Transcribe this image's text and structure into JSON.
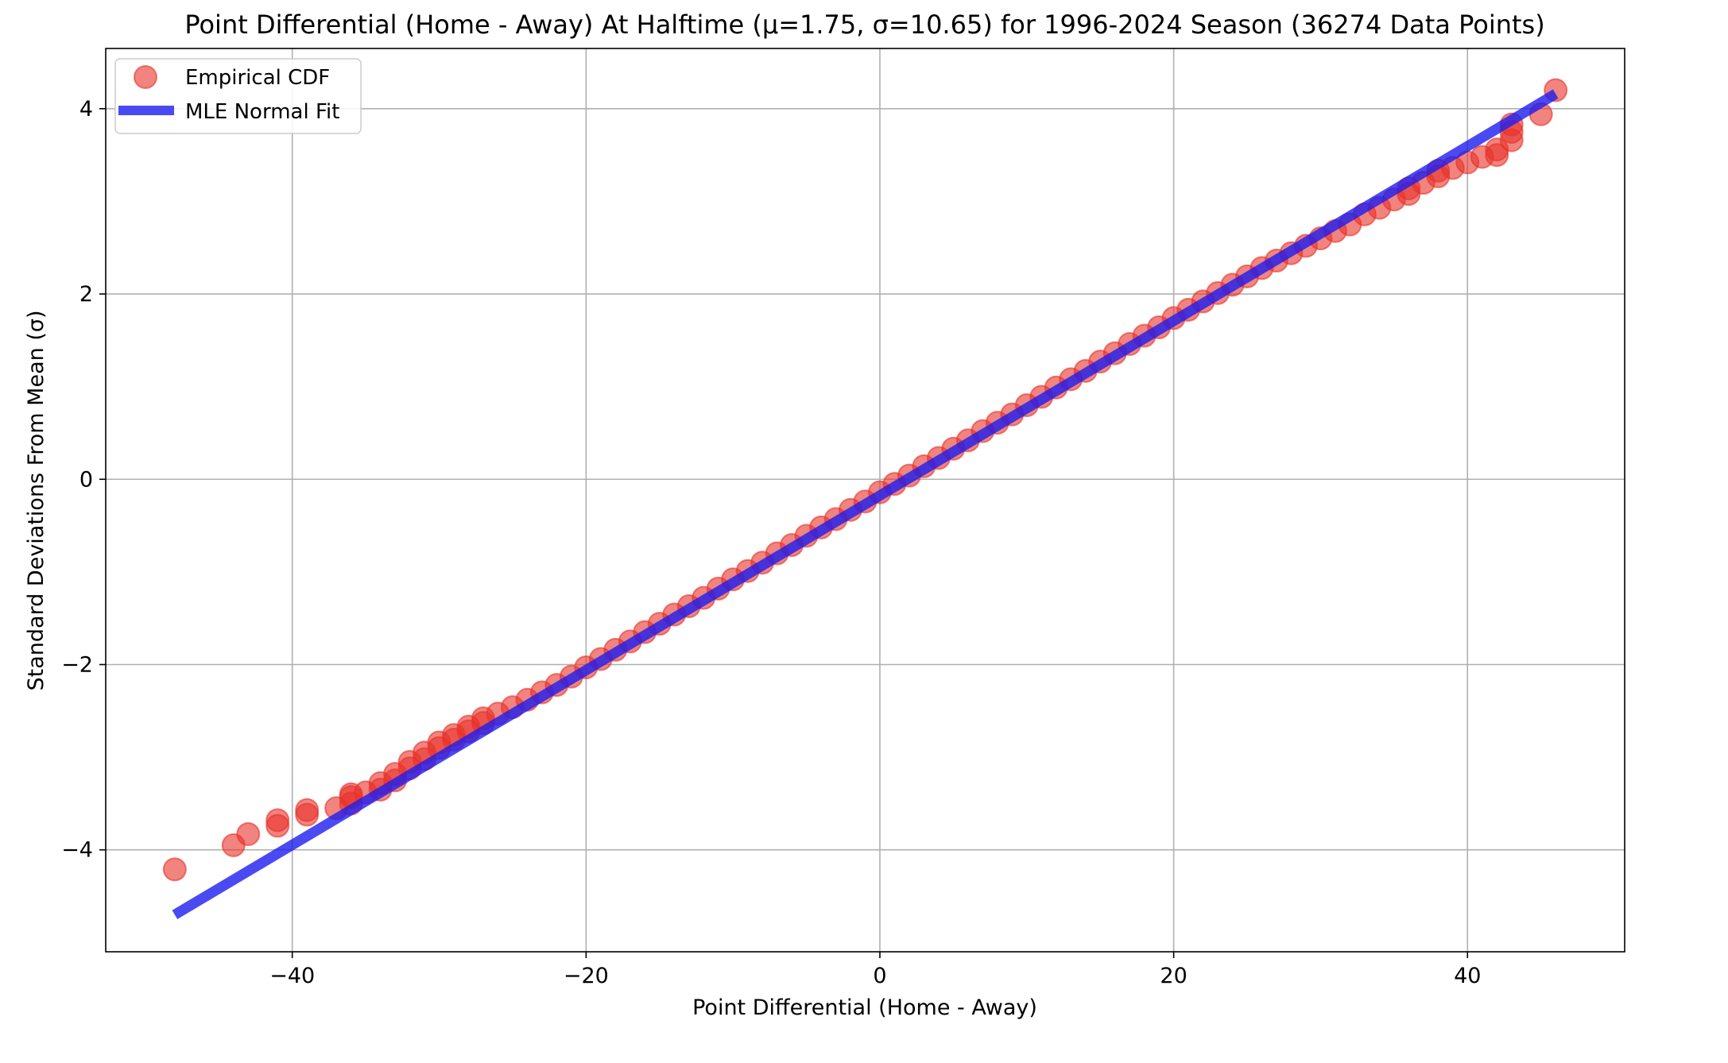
{
  "chart_data": {
    "type": "scatter",
    "title": "Point Differential (Home - Away) At Halftime (μ=1.75, σ=10.65) for 1996-2024 Season (36274 Data Points)",
    "xlabel": "Point Differential (Home - Away)",
    "ylabel": "Standard Deviations From Mean (σ)",
    "xlim": [
      -52.7,
      50.7
    ],
    "ylim": [
      -5.1,
      4.65
    ],
    "xticks": [
      -40,
      -20,
      0,
      20,
      40
    ],
    "xtick_labels": [
      "−40",
      "−20",
      "0",
      "20",
      "40"
    ],
    "yticks": [
      -4,
      -2,
      0,
      2,
      4
    ],
    "ytick_labels": [
      "−4",
      "−2",
      "0",
      "2",
      "4"
    ],
    "grid": true,
    "legend_position": "upper-left",
    "series": [
      {
        "name": "Empirical CDF",
        "kind": "scatter",
        "color": "#e8322a",
        "points": [
          [
            -48,
            -4.21
          ],
          [
            -44,
            -3.95
          ],
          [
            -43,
            -3.83
          ],
          [
            -41,
            -3.74
          ],
          [
            -41,
            -3.68
          ],
          [
            -39,
            -3.62
          ],
          [
            -39,
            -3.57
          ],
          [
            -37,
            -3.55
          ],
          [
            -36,
            -3.5
          ],
          [
            -36,
            -3.43
          ],
          [
            -36,
            -3.4
          ],
          [
            -35,
            -3.38
          ],
          [
            -34,
            -3.35
          ],
          [
            -34,
            -3.28
          ],
          [
            -33,
            -3.25
          ],
          [
            -33,
            -3.18
          ],
          [
            -32,
            -3.12
          ],
          [
            -32,
            -3.05
          ],
          [
            -31,
            -3.02
          ],
          [
            -31,
            -2.95
          ],
          [
            -30,
            -2.9
          ],
          [
            -30,
            -2.84
          ],
          [
            -29,
            -2.81
          ],
          [
            -29,
            -2.76
          ],
          [
            -28,
            -2.72
          ],
          [
            -28,
            -2.67
          ],
          [
            -27,
            -2.63
          ],
          [
            -27,
            -2.58
          ],
          [
            -26,
            -2.53
          ],
          [
            -25,
            -2.46
          ],
          [
            -24,
            -2.38
          ],
          [
            -23,
            -2.3
          ],
          [
            -22,
            -2.22
          ],
          [
            -21,
            -2.13
          ],
          [
            -20,
            -2.03
          ],
          [
            -19,
            -1.94
          ],
          [
            -18,
            -1.84
          ],
          [
            -17,
            -1.75
          ],
          [
            -16,
            -1.65
          ],
          [
            -15,
            -1.56
          ],
          [
            -14,
            -1.46
          ],
          [
            -13,
            -1.37
          ],
          [
            -12,
            -1.28
          ],
          [
            -11,
            -1.18
          ],
          [
            -10,
            -1.08
          ],
          [
            -9,
            -0.99
          ],
          [
            -8,
            -0.9
          ],
          [
            -7,
            -0.8
          ],
          [
            -6,
            -0.71
          ],
          [
            -5,
            -0.61
          ],
          [
            -4,
            -0.52
          ],
          [
            -3,
            -0.43
          ],
          [
            -2,
            -0.33
          ],
          [
            -1,
            -0.24
          ],
          [
            0,
            -0.14
          ],
          [
            1,
            -0.05
          ],
          [
            2,
            0.04
          ],
          [
            3,
            0.14
          ],
          [
            4,
            0.23
          ],
          [
            5,
            0.33
          ],
          [
            6,
            0.42
          ],
          [
            7,
            0.52
          ],
          [
            8,
            0.61
          ],
          [
            9,
            0.7
          ],
          [
            10,
            0.8
          ],
          [
            11,
            0.89
          ],
          [
            12,
            0.99
          ],
          [
            13,
            1.08
          ],
          [
            14,
            1.17
          ],
          [
            15,
            1.27
          ],
          [
            16,
            1.36
          ],
          [
            17,
            1.46
          ],
          [
            18,
            1.55
          ],
          [
            19,
            1.64
          ],
          [
            20,
            1.74
          ],
          [
            21,
            1.83
          ],
          [
            22,
            1.92
          ],
          [
            23,
            2.01
          ],
          [
            24,
            2.1
          ],
          [
            25,
            2.19
          ],
          [
            26,
            2.28
          ],
          [
            27,
            2.36
          ],
          [
            28,
            2.44
          ],
          [
            29,
            2.52
          ],
          [
            30,
            2.6
          ],
          [
            31,
            2.68
          ],
          [
            32,
            2.75
          ],
          [
            33,
            2.86
          ],
          [
            34,
            2.93
          ],
          [
            35,
            3.02
          ],
          [
            36,
            3.08
          ],
          [
            36,
            3.14
          ],
          [
            37,
            3.2
          ],
          [
            38,
            3.27
          ],
          [
            38,
            3.33
          ],
          [
            39,
            3.36
          ],
          [
            40,
            3.42
          ],
          [
            41,
            3.48
          ],
          [
            42,
            3.5
          ],
          [
            42,
            3.56
          ],
          [
            43,
            3.66
          ],
          [
            43,
            3.75
          ],
          [
            43,
            3.83
          ],
          [
            45,
            3.94
          ],
          [
            46,
            4.2
          ]
        ]
      },
      {
        "name": "MLE Normal Fit",
        "kind": "line",
        "color": "#1d1df0",
        "points": [
          [
            -48,
            -4.7
          ],
          [
            46,
            4.16
          ]
        ]
      }
    ]
  }
}
